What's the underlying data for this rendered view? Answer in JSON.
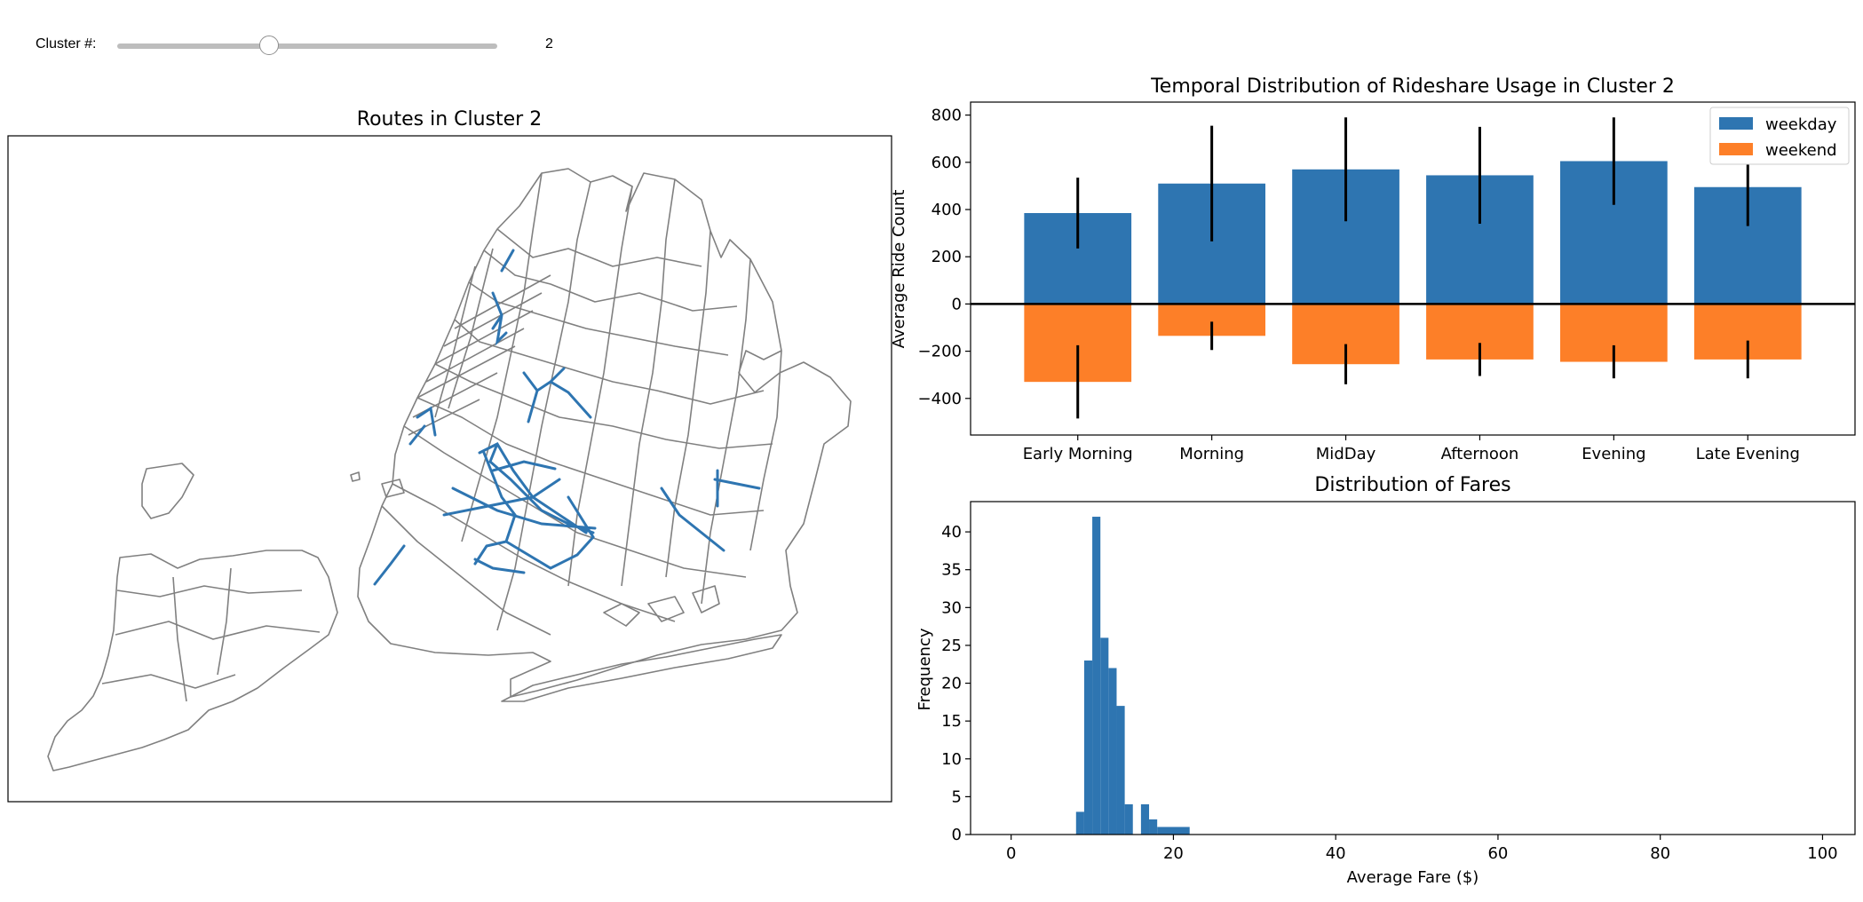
{
  "slider": {
    "label": "Cluster #:",
    "value": "2",
    "min": 0,
    "max": 5,
    "current": 2
  },
  "map": {
    "title": "Routes in Cluster 2",
    "boundary_color": "#808080",
    "route_color": "#2e75b1"
  },
  "chart_data": [
    {
      "type": "bar",
      "title": "Temporal Distribution of Rideshare Usage in Cluster 2",
      "xlabel": "",
      "ylabel": "Average Ride Count",
      "categories": [
        "Early Morning",
        "Morning",
        "MidDay",
        "Afternoon",
        "Evening",
        "Late Evening"
      ],
      "series": [
        {
          "name": "weekday",
          "color": "#2e75b1",
          "values": [
            385,
            510,
            570,
            545,
            605,
            495
          ],
          "error": [
            150,
            245,
            220,
            205,
            185,
            165
          ]
        },
        {
          "name": "weekend",
          "color": "#fd7f28",
          "values": [
            -330,
            -135,
            -255,
            -235,
            -245,
            -235
          ],
          "error": [
            155,
            60,
            85,
            70,
            70,
            80
          ]
        }
      ],
      "yticks": [
        -400,
        -200,
        0,
        200,
        400,
        600,
        800
      ],
      "ylim": [
        -555,
        855
      ],
      "legend": "top-right",
      "grid": false
    },
    {
      "type": "bar",
      "title": "Distribution of Fares",
      "xlabel": "Average Fare ($)",
      "ylabel": "Frequency",
      "color": "#2e75b1",
      "bins": [
        {
          "start": 8.0,
          "end": 9.0,
          "count": 3
        },
        {
          "start": 9.0,
          "end": 10.0,
          "count": 23
        },
        {
          "start": 10.0,
          "end": 11.0,
          "count": 42
        },
        {
          "start": 11.0,
          "end": 12.0,
          "count": 26
        },
        {
          "start": 12.0,
          "end": 13.0,
          "count": 22
        },
        {
          "start": 13.0,
          "end": 14.0,
          "count": 17
        },
        {
          "start": 14.0,
          "end": 15.0,
          "count": 4
        },
        {
          "start": 16.0,
          "end": 17.0,
          "count": 4
        },
        {
          "start": 17.0,
          "end": 18.0,
          "count": 2
        },
        {
          "start": 18.0,
          "end": 22.0,
          "count": 1
        }
      ],
      "xticks": [
        0,
        20,
        40,
        60,
        80,
        100
      ],
      "yticks": [
        0,
        5,
        10,
        15,
        20,
        25,
        30,
        35,
        40
      ],
      "xlim": [
        -5,
        104
      ],
      "ylim": [
        0,
        44
      ],
      "grid": false
    }
  ]
}
